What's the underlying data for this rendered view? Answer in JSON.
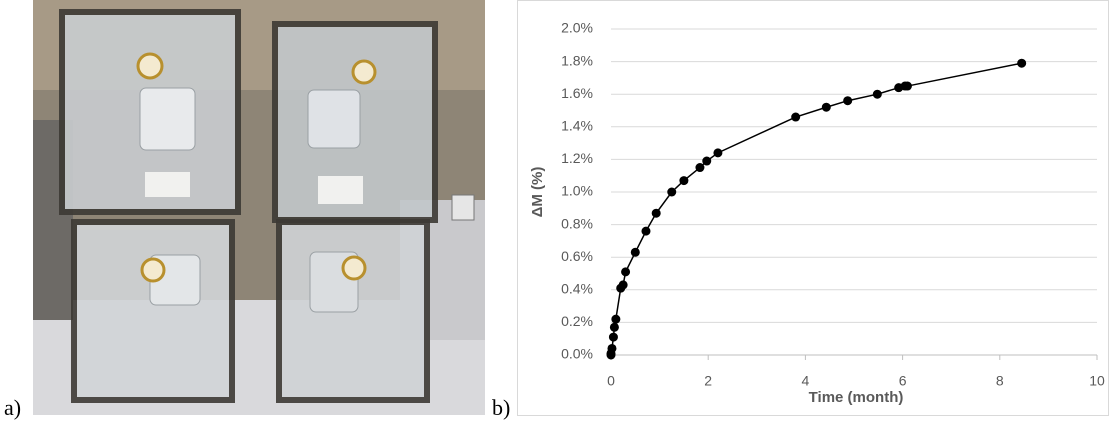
{
  "panel_labels": [
    "a)",
    "b)"
  ],
  "chart_data": {
    "type": "line",
    "xlabel": "Time (month)",
    "ylabel": "ΔM (%)",
    "x": [
      0,
      0,
      0.02,
      0.05,
      0.07,
      0.1,
      0.2,
      0.25,
      0.3,
      0.5,
      0.72,
      0.93,
      1.25,
      1.5,
      1.83,
      1.97,
      2.2,
      3.8,
      4.43,
      4.87,
      5.48,
      5.92,
      6.05,
      6.1,
      8.45
    ],
    "values": [
      0,
      0.01,
      0.04,
      0.11,
      0.17,
      0.22,
      0.41,
      0.43,
      0.51,
      0.63,
      0.76,
      0.87,
      1.0,
      1.07,
      1.15,
      1.19,
      1.24,
      1.46,
      1.52,
      1.56,
      1.6,
      1.64,
      1.65,
      1.65,
      1.79
    ],
    "color": "#000000",
    "xlim": [
      0,
      10
    ],
    "xticks": [
      0,
      2,
      4,
      6,
      8,
      10
    ],
    "ylim": [
      0,
      2
    ],
    "yticks": [
      {
        "value": 0,
        "label": "0.0%"
      },
      {
        "value": 0.2,
        "label": "0.2%"
      },
      {
        "value": 0.4,
        "label": "0.4%"
      },
      {
        "value": 0.6,
        "label": "0.6%"
      },
      {
        "value": 0.8,
        "label": "0.8%"
      },
      {
        "value": 1.0,
        "label": "1.0%"
      },
      {
        "value": 1.2,
        "label": "1.2%"
      },
      {
        "value": 1.4,
        "label": "1.4%"
      },
      {
        "value": 1.6,
        "label": "1.6%"
      },
      {
        "value": 1.8,
        "label": "1.8%"
      },
      {
        "value": 2.0,
        "label": "2.0%"
      }
    ],
    "grid": true
  }
}
